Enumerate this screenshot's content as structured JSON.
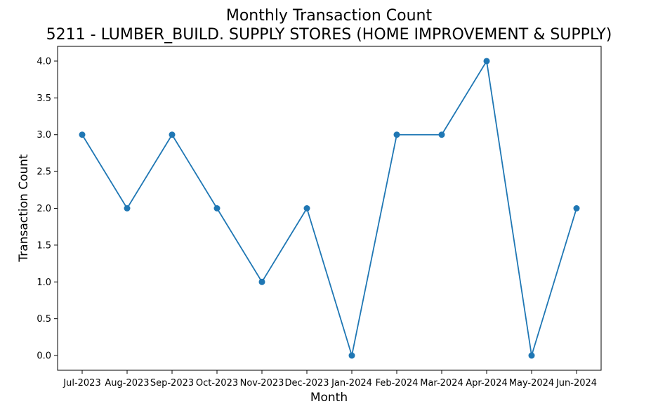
{
  "chart_data": {
    "type": "line",
    "title": "Monthly Transaction Count",
    "subtitle": "5211 - LUMBER_BUILD. SUPPLY STORES (HOME IMPROVEMENT & SUPPLY)",
    "xlabel": "Month",
    "ylabel": "Transaction Count",
    "categories": [
      "Jul-2023",
      "Aug-2023",
      "Sep-2023",
      "Oct-2023",
      "Nov-2023",
      "Dec-2023",
      "Jan-2024",
      "Feb-2024",
      "Mar-2024",
      "Apr-2024",
      "May-2024",
      "Jun-2024"
    ],
    "series": [
      {
        "values": [
          3,
          2,
          3,
          2,
          1,
          2,
          0,
          3,
          3,
          4,
          0,
          2
        ]
      }
    ],
    "ylim": [
      -0.2,
      4.2
    ],
    "yticks": [
      "0.0",
      "0.5",
      "1.0",
      "1.5",
      "2.0",
      "2.5",
      "3.0",
      "3.5",
      "4.0"
    ],
    "grid": false,
    "marker": "circle",
    "line_color": "#1f77b4"
  }
}
